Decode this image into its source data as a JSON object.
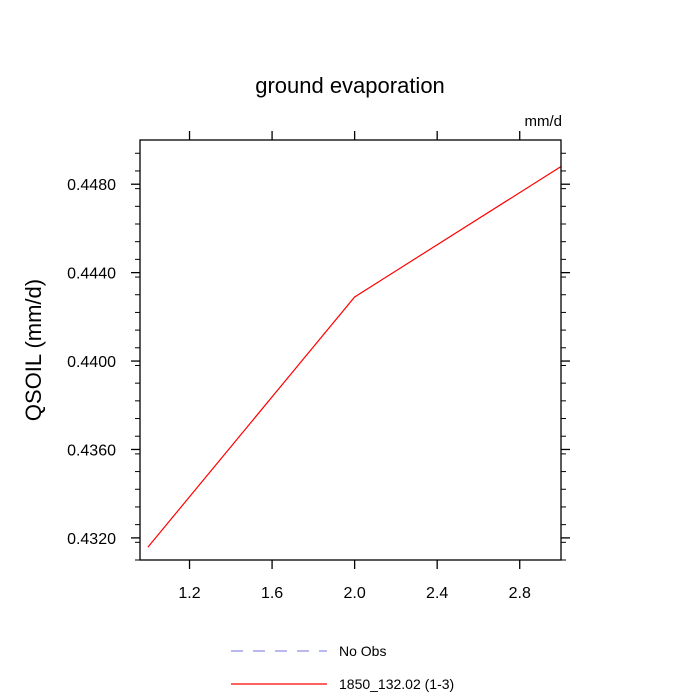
{
  "chart_data": {
    "type": "line",
    "title": "ground evaporation",
    "subtitle": "mm/d",
    "ylabel": "QSOIL  (mm/d)",
    "xlim": [
      0.96,
      3.0
    ],
    "ylim": [
      0.431,
      0.45
    ],
    "xticks": [
      1.2,
      1.6,
      2.0,
      2.4,
      2.8
    ],
    "xtick_labels": [
      "1.2",
      "1.6",
      "2.0",
      "2.4",
      "2.8"
    ],
    "yticks": [
      0.432,
      0.436,
      0.44,
      0.444,
      0.448
    ],
    "ytick_labels": [
      "0.4320",
      "0.4360",
      "0.4400",
      "0.4440",
      "0.4480"
    ],
    "grid": false,
    "legend_position": "bottom",
    "series": [
      {
        "name": "No Obs",
        "color": "#8f8fe6",
        "dash": "dashed",
        "x": [],
        "y": []
      },
      {
        "name": "1850_132.02 (1-3)",
        "color": "#ff0000",
        "dash": "solid",
        "x": [
          1.0,
          2.0,
          3.0
        ],
        "y": [
          0.4316,
          0.4429,
          0.4488
        ]
      }
    ]
  }
}
